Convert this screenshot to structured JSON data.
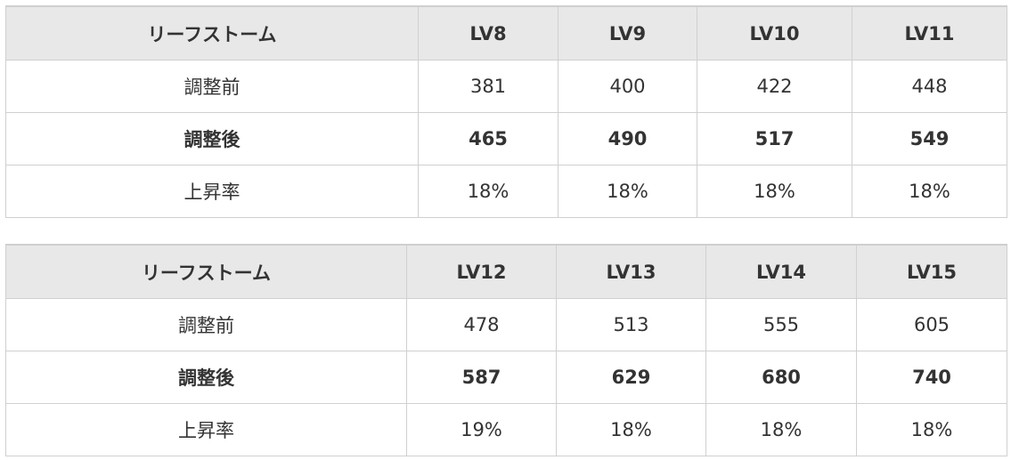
{
  "tables": [
    {
      "header": [
        "リーフストーム",
        "LV8",
        "LV9",
        "LV10",
        "LV11"
      ],
      "rows": [
        {
          "label": "調整前",
          "values": [
            "381",
            "400",
            "422",
            "448"
          ]
        },
        {
          "label": "調整後",
          "values": [
            "465",
            "490",
            "517",
            "549"
          ]
        },
        {
          "label": "上昇率",
          "values": [
            "18%",
            "18%",
            "18%",
            "18%"
          ]
        }
      ]
    },
    {
      "header": [
        "リーフストーム",
        "LV12",
        "LV13",
        "LV14",
        "LV15"
      ],
      "rows": [
        {
          "label": "調整前",
          "values": [
            "478",
            "513",
            "555",
            "605"
          ]
        },
        {
          "label": "調整後",
          "values": [
            "587",
            "629",
            "680",
            "740"
          ]
        },
        {
          "label": "上昇率",
          "values": [
            "19%",
            "18%",
            "18%",
            "18%"
          ]
        }
      ]
    }
  ]
}
